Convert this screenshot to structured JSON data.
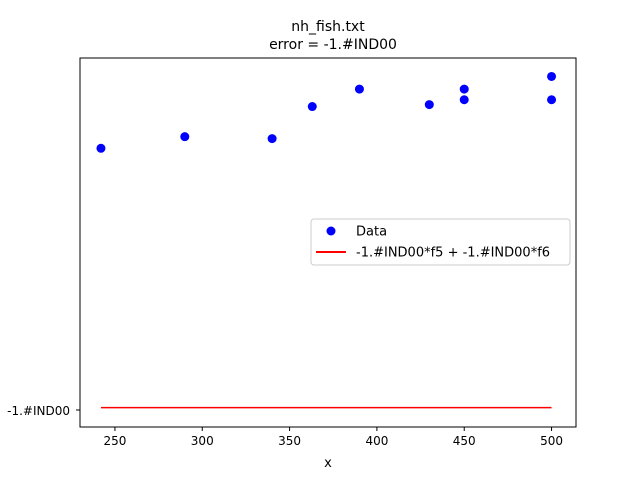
{
  "chart_data": {
    "type": "scatter",
    "title": "nh_fish.txt",
    "subtitle": "error  = -1.#IND00",
    "xlabel": "x",
    "ylabel": "",
    "xlim": [
      230,
      514
    ],
    "x_ticks": [
      250,
      300,
      350,
      400,
      450,
      500
    ],
    "y_tick_label": "-1.#IND00",
    "series": [
      {
        "name": "Data",
        "style": "markers",
        "color": "#0000ff",
        "x": [
          242,
          290,
          340,
          363,
          390,
          430,
          450,
          450,
          500,
          500
        ],
        "y": [
          0.6675,
          0.6975,
          0.6925,
          0.775,
          0.82,
          0.78,
          0.82,
          0.7925,
          0.8525,
          0.7925
        ]
      },
      {
        "name": "-1.#IND00*f5 + -1.#IND00*f6",
        "style": "line",
        "color": "#ff0000",
        "x": [
          242,
          500
        ],
        "y": [
          0,
          0
        ]
      }
    ],
    "ylim": [
      -0.05,
      0.9
    ],
    "legend_position": "center-right",
    "grid": false
  }
}
